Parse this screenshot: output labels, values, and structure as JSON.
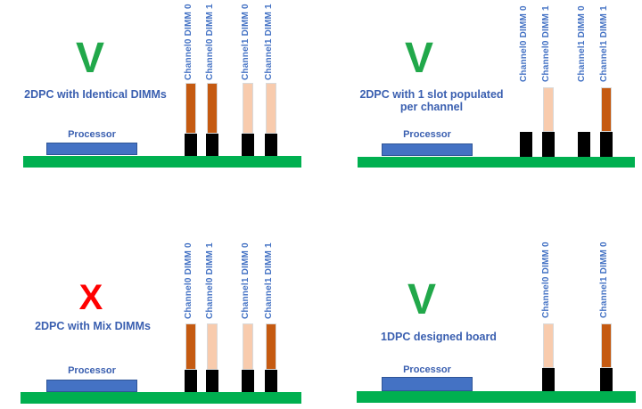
{
  "diagram": {
    "colors": {
      "pass_mark": "#21A84A",
      "fail_mark": "#FF0000",
      "caption_text": "#3A5FB0",
      "channel_label_text": "#4472C4",
      "board": "#00B050",
      "processor_fill": "#4472C4",
      "processor_border": "#2F5597",
      "slot": "#000000",
      "dimm_dark_orange": "#C55A11",
      "dimm_light_orange": "#F8CBAD"
    },
    "quadrants": [
      {
        "name": "2dpc-identical-dimms",
        "verdict": "pass",
        "mark": "V",
        "caption_lines": [
          "2DPC with Identical DIMMs"
        ],
        "processor_label": "Processor",
        "slots": [
          {
            "label": "Channel0 DIMM 0",
            "populated": true,
            "dimm": "dark"
          },
          {
            "label": "Channel0 DIMM 1",
            "populated": true,
            "dimm": "dark"
          },
          {
            "label": "Channel1 DIMM 0",
            "populated": true,
            "dimm": "light"
          },
          {
            "label": "Channel1 DIMM 1",
            "populated": true,
            "dimm": "light"
          }
        ]
      },
      {
        "name": "2dpc-one-slot-populated-per-channel",
        "verdict": "pass",
        "mark": "V",
        "caption_lines": [
          "2DPC with 1 slot populated",
          "per channel"
        ],
        "processor_label": "Processor",
        "slots": [
          {
            "label": "Channel0 DIMM 0",
            "populated": false
          },
          {
            "label": "Channel0 DIMM 1",
            "populated": true,
            "dimm": "light"
          },
          {
            "label": "Channel1 DIMM 0",
            "populated": false
          },
          {
            "label": "Channel1 DIMM 1",
            "populated": true,
            "dimm": "dark"
          }
        ]
      },
      {
        "name": "2dpc-mix-dimms",
        "verdict": "fail",
        "mark": "X",
        "caption_lines": [
          "2DPC with Mix DIMMs"
        ],
        "processor_label": "Processor",
        "slots": [
          {
            "label": "Channel0 DIMM 0",
            "populated": true,
            "dimm": "dark"
          },
          {
            "label": "Channel0 DIMM 1",
            "populated": true,
            "dimm": "light"
          },
          {
            "label": "Channel1 DIMM 0",
            "populated": true,
            "dimm": "light"
          },
          {
            "label": "Channel1 DIMM 1",
            "populated": true,
            "dimm": "dark"
          }
        ]
      },
      {
        "name": "1dpc-designed-board",
        "verdict": "pass",
        "mark": "V",
        "caption_lines": [
          "1DPC designed board"
        ],
        "processor_label": "Processor",
        "slots": [
          {
            "label": "Channel0 DIMM 0",
            "populated": true,
            "dimm": "light"
          },
          {
            "label": "Channel1 DIMM 0",
            "populated": true,
            "dimm": "dark"
          }
        ]
      }
    ]
  }
}
